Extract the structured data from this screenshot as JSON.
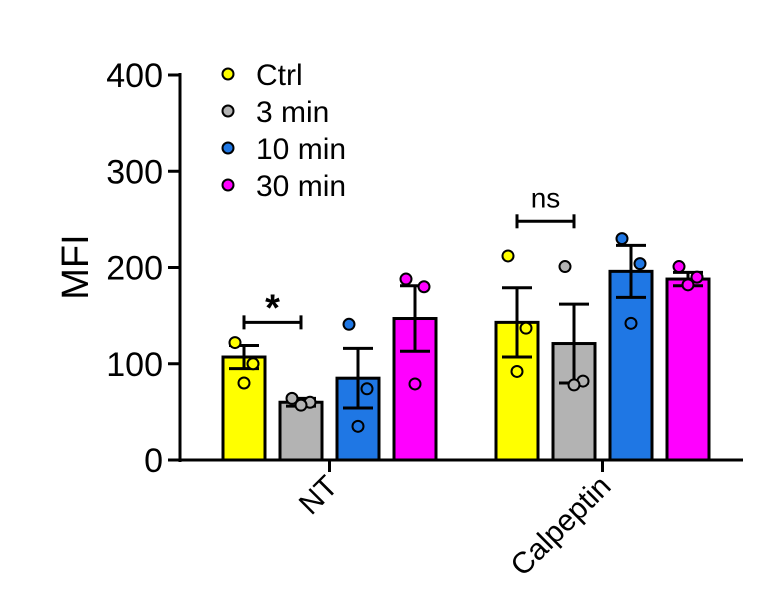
{
  "chart_data": {
    "type": "bar",
    "ylabel": "MFI",
    "ylim": [
      0,
      400
    ],
    "yticks": [
      0,
      100,
      200,
      300,
      400
    ],
    "groups": [
      "NT",
      "Calpeptin"
    ],
    "legend_position": "top-left",
    "series": [
      {
        "name": "Ctrl",
        "color": "#ffff00",
        "values": [
          107,
          143
        ],
        "errors": [
          12,
          36
        ],
        "points": [
          [
            122,
            100,
            80
          ],
          [
            212,
            137,
            92
          ]
        ]
      },
      {
        "name": "3 min",
        "color": "#b3b3b3",
        "values": [
          60,
          121
        ],
        "errors": [
          4,
          41
        ],
        "points": [
          [
            64,
            60,
            57
          ],
          [
            201,
            82,
            78
          ]
        ]
      },
      {
        "name": "10 min",
        "color": "#1f77e4",
        "values": [
          85,
          196
        ],
        "errors": [
          31,
          27
        ],
        "points": [
          [
            141,
            74,
            35
          ],
          [
            230,
            204,
            142
          ]
        ]
      },
      {
        "name": "30 min",
        "color": "#ff00ff",
        "values": [
          147,
          188
        ],
        "errors": [
          34,
          7
        ],
        "points": [
          [
            188,
            180,
            79
          ],
          [
            201,
            190,
            182
          ]
        ]
      }
    ],
    "annotations": [
      {
        "group": 0,
        "from_series": 0,
        "to_series": 1,
        "label": "*",
        "y": 143
      },
      {
        "group": 1,
        "from_series": 0,
        "to_series": 1,
        "label": "ns",
        "y": 248
      }
    ]
  }
}
